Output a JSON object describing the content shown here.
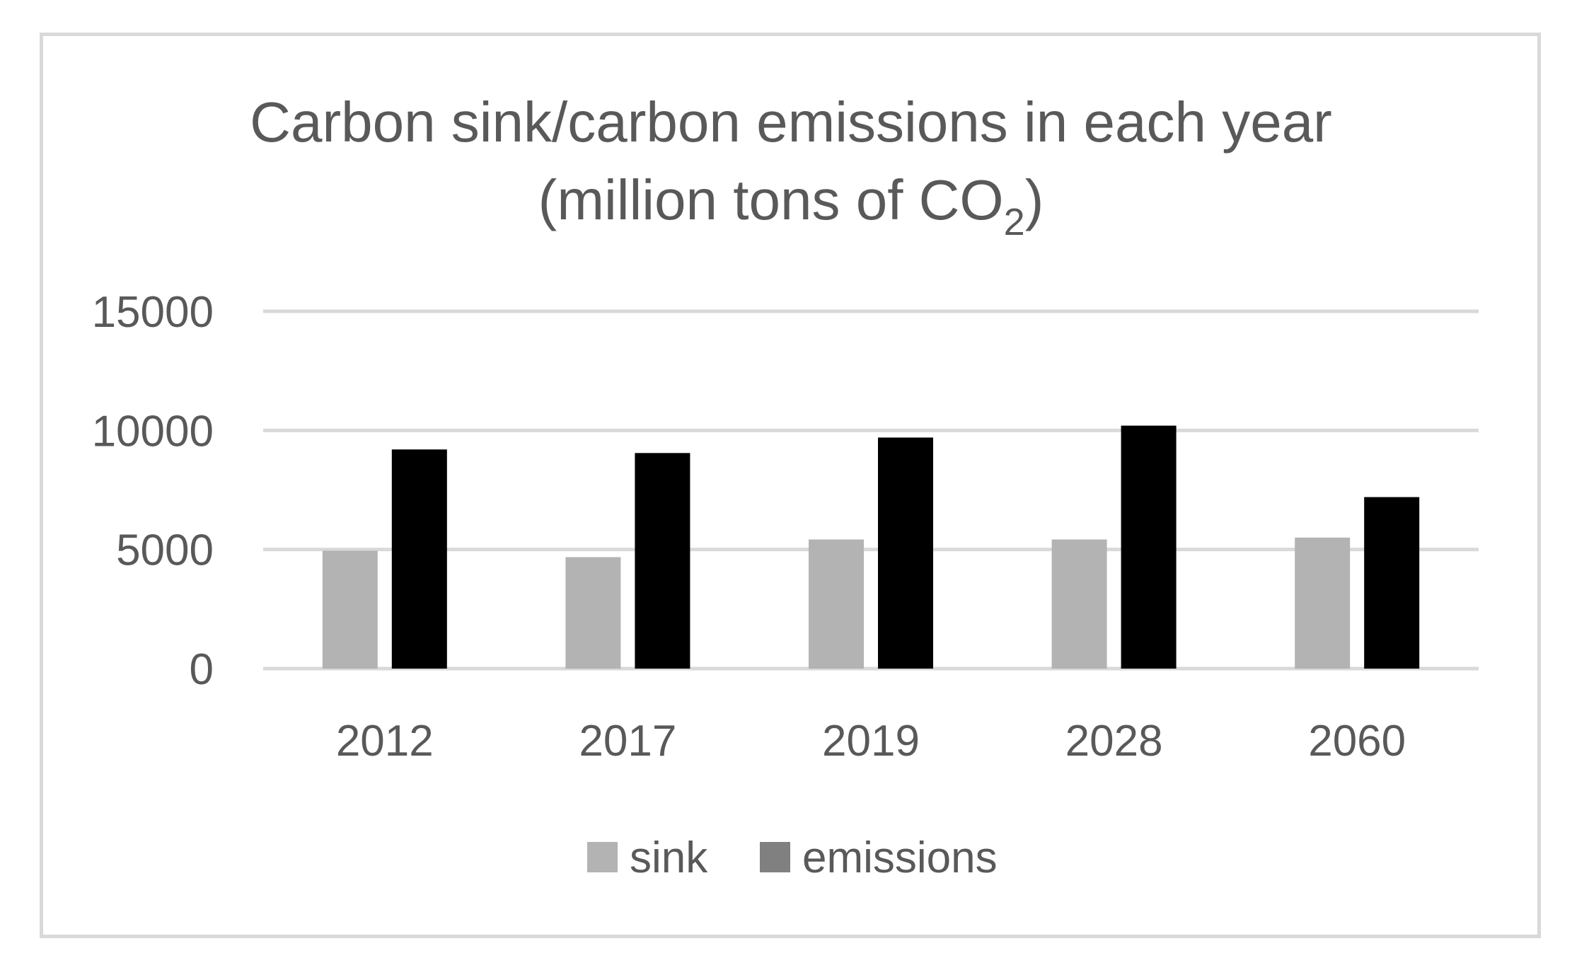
{
  "chart_data": {
    "type": "bar",
    "title_line1": "Carbon sink/carbon emissions in each year",
    "title_line2_prefix": "(million tons of CO",
    "title_line2_subscript": "2",
    "title_line2_suffix": ")",
    "categories": [
      "2012",
      "2017",
      "2019",
      "2028",
      "2060"
    ],
    "series": [
      {
        "name": "sink",
        "values": [
          4950,
          4680,
          5420,
          5420,
          5500
        ],
        "color": "#b3b3b3"
      },
      {
        "name": "emissions",
        "values": [
          9200,
          9050,
          9700,
          10200,
          7200
        ],
        "color": "#000000"
      }
    ],
    "legend_swatch_colors": [
      "#b3b3b3",
      "#808080"
    ],
    "ylim": [
      0,
      15000
    ],
    "yticks": [
      "0",
      "5000",
      "10000",
      "15000"
    ],
    "ytick_values": [
      0,
      5000,
      10000,
      15000
    ],
    "grid": true,
    "gridline_color": "#d9d9d9",
    "legend_position": "bottom"
  }
}
